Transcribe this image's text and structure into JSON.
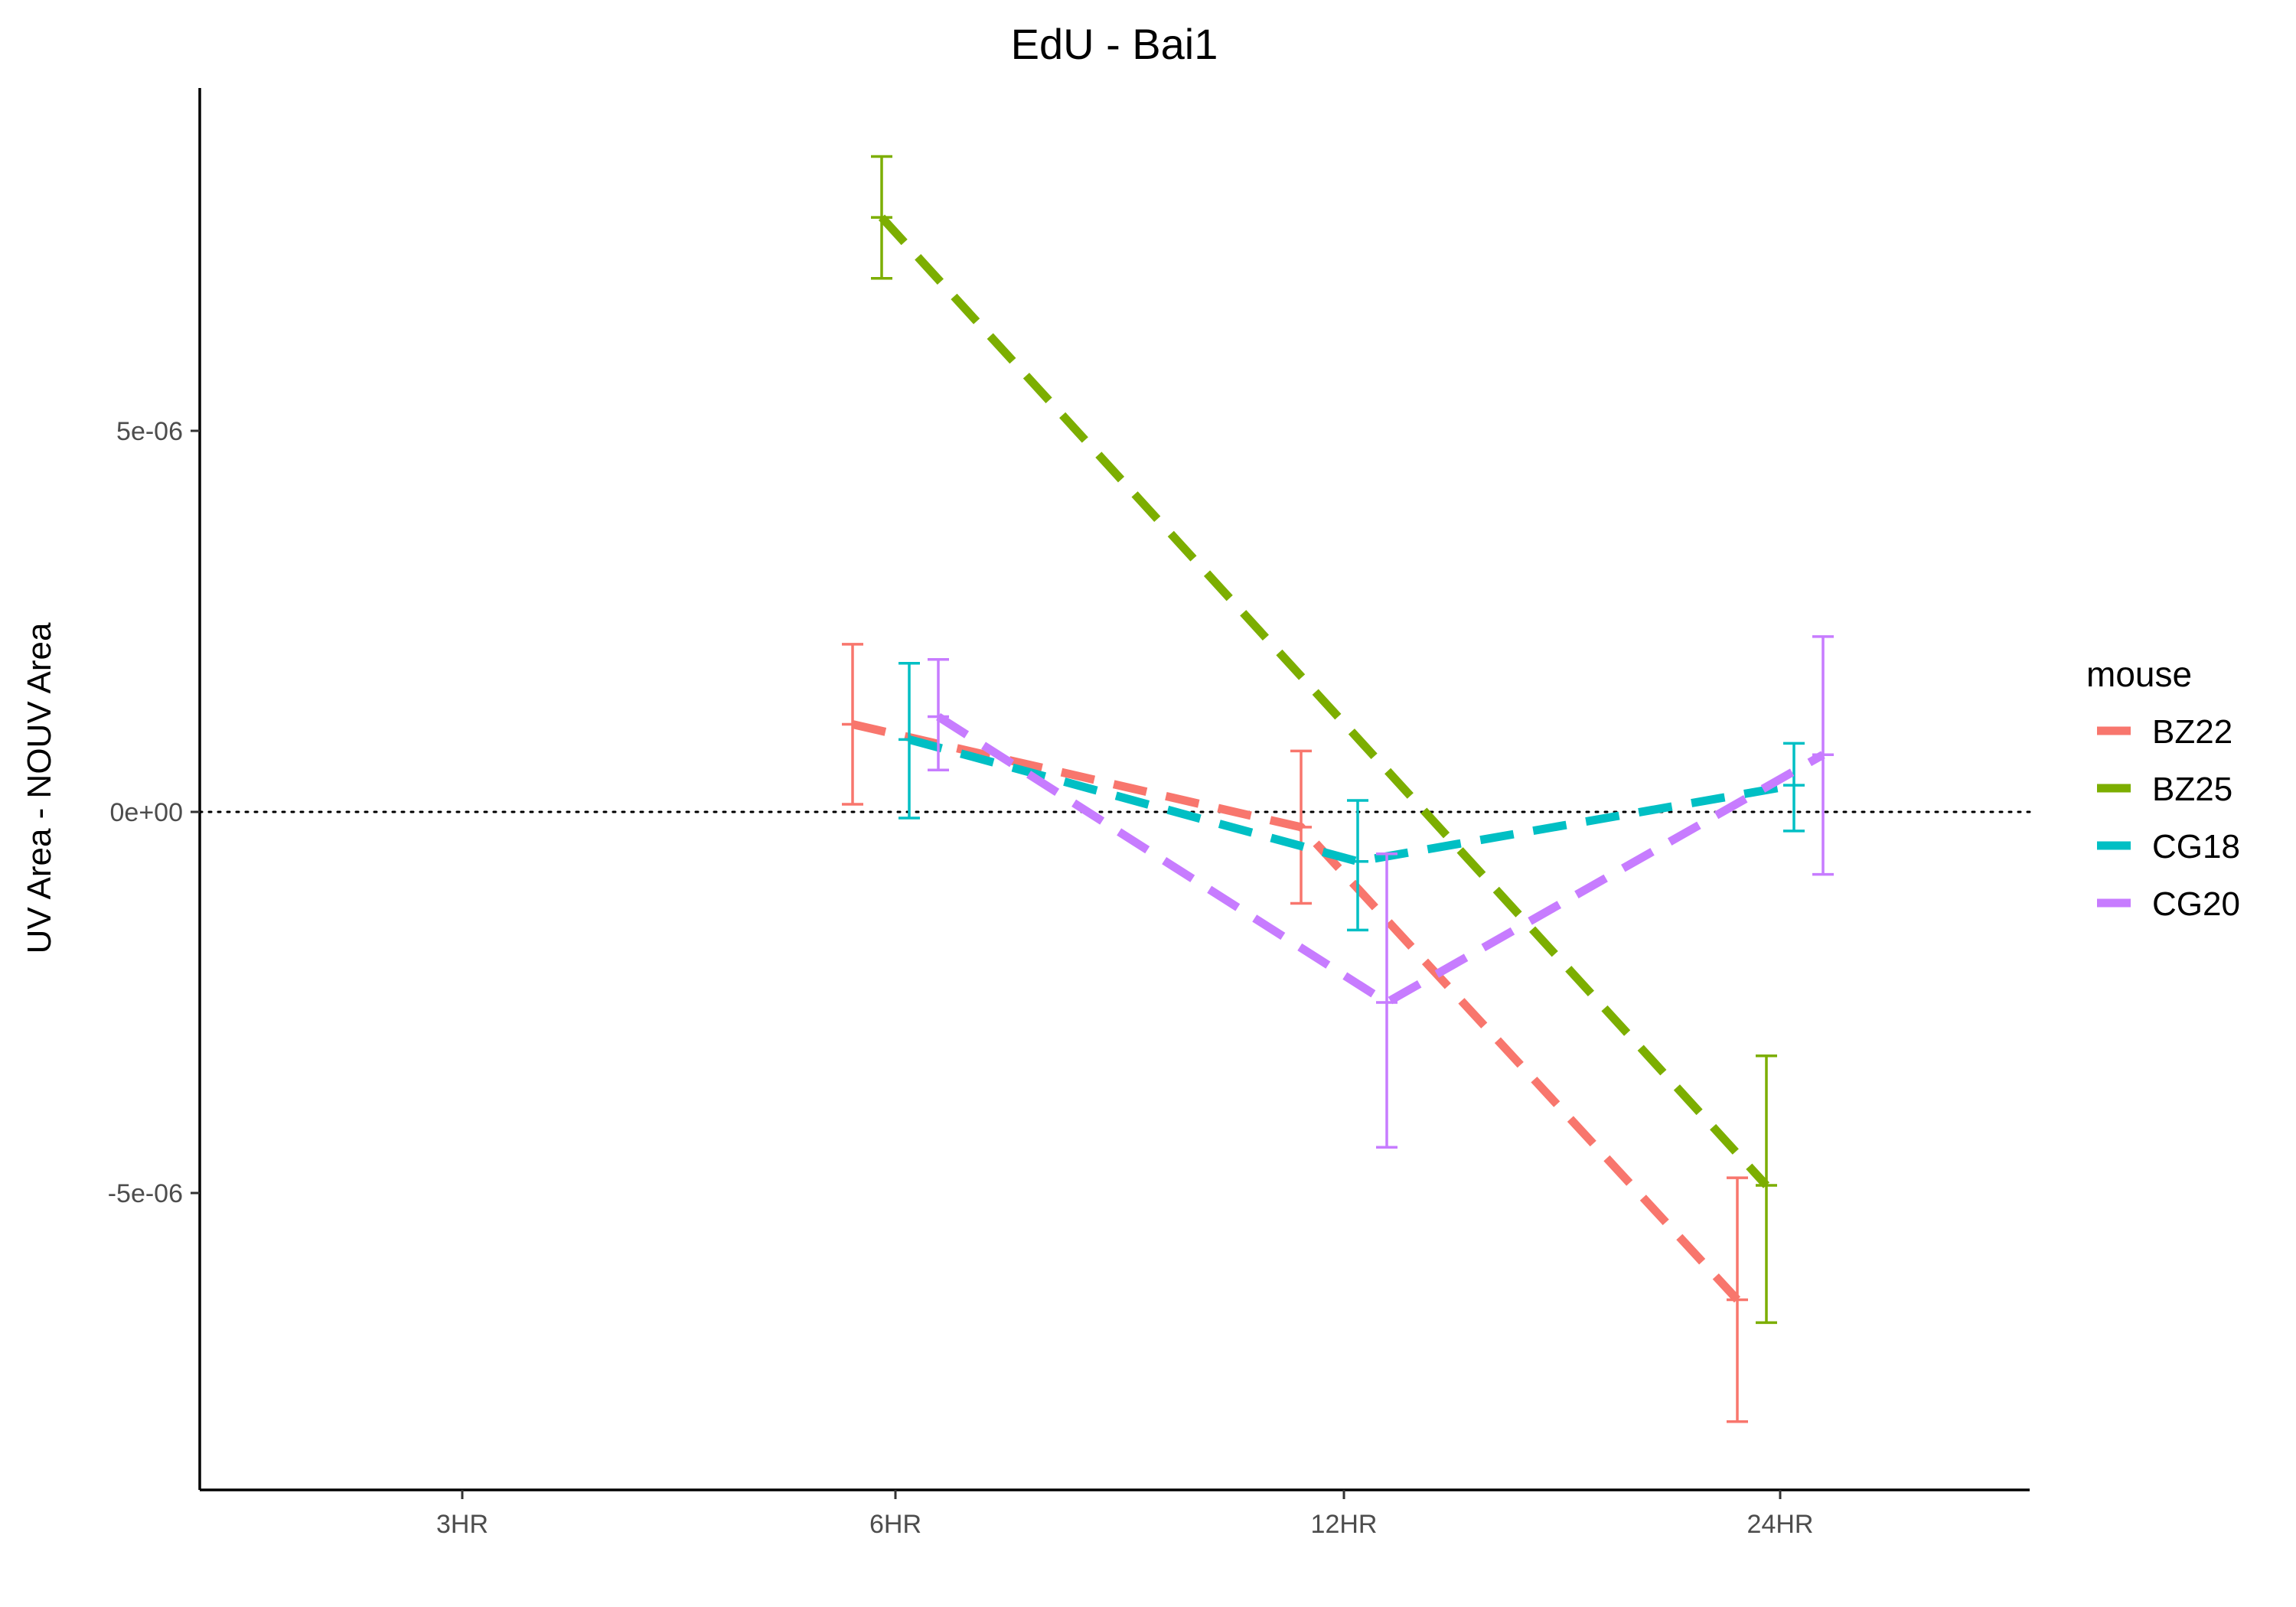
{
  "chart_data": {
    "type": "line",
    "title": "EdU - Bai1",
    "xlabel": "",
    "ylabel": "UV Area - NOUV Area",
    "categories": [
      "3HR",
      "6HR",
      "12HR",
      "24HR"
    ],
    "yticks": [
      {
        "value": 5e-06,
        "label": "5e-06"
      },
      {
        "value": 0,
        "label": "0e+00"
      },
      {
        "value": -5e-06,
        "label": "-5e-06"
      }
    ],
    "ylim": [
      -8.8e-06,
      9.4e-06
    ],
    "reference_line": {
      "y": 0,
      "style": "dotted"
    },
    "legend": {
      "title": "mouse",
      "position": "right"
    },
    "series": [
      {
        "name": "BZ22",
        "color": "#F8766D",
        "values": [
          null,
          1.15e-06,
          -2e-07,
          -6.4e-06
        ],
        "error_low": [
          null,
          1e-07,
          -1.2e-06,
          -8e-06
        ],
        "error_high": [
          null,
          2.2e-06,
          8e-07,
          -4.8e-06
        ]
      },
      {
        "name": "BZ25",
        "color": "#7CAE00",
        "values": [
          null,
          7.8e-06,
          null,
          -4.9e-06
        ],
        "error_low": [
          null,
          7e-06,
          null,
          -6.7e-06
        ],
        "error_high": [
          null,
          8.6e-06,
          null,
          -3.2e-06
        ]
      },
      {
        "name": "CG18",
        "color": "#00BFC4",
        "values": [
          null,
          9.5e-07,
          -6.5e-07,
          3.5e-07
        ],
        "error_low": [
          null,
          -8e-08,
          -1.55e-06,
          -2.5e-07
        ],
        "error_high": [
          null,
          1.95e-06,
          1.5e-07,
          9e-07
        ]
      },
      {
        "name": "CG20",
        "color": "#C77CFF",
        "values": [
          null,
          1.25e-06,
          -2.5e-06,
          7.5e-07
        ],
        "error_low": [
          null,
          5.5e-07,
          -4.4e-06,
          -8.2e-07
        ],
        "error_high": [
          null,
          2e-06,
          -5.5e-07,
          2.3e-06
        ]
      }
    ]
  }
}
